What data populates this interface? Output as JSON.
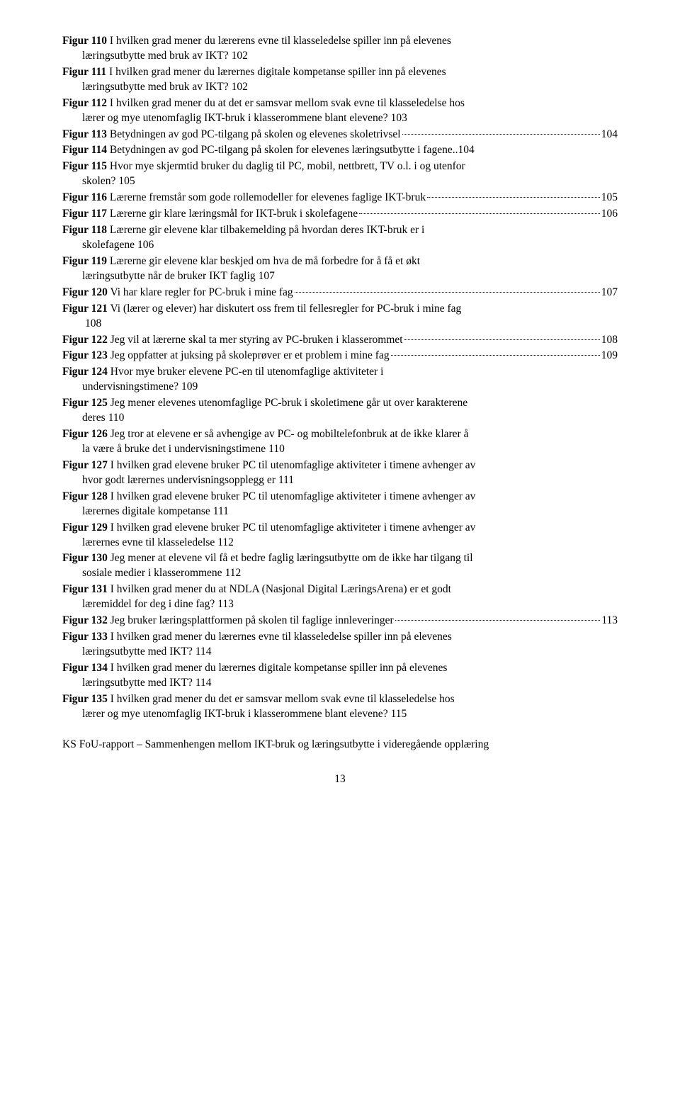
{
  "entries": [
    {
      "label": "Figur 110",
      "title": "I hvilken grad mener du lærerens evne til klasseledelse spiller inn på elevenes",
      "cont": "læringsutbytte med bruk av IKT?",
      "page": "102"
    },
    {
      "label": "Figur 111",
      "title": "I hvilken grad mener du lærernes digitale kompetanse spiller inn på elevenes",
      "cont": "læringsutbytte med bruk av IKT?",
      "page": "102"
    },
    {
      "label": "Figur 112",
      "title": "I hvilken grad mener du at det er samsvar mellom svak evne til klasseledelse hos",
      "cont": "lærer og mye utenomfaglig IKT-bruk i klasserommene blant elevene?",
      "page": "103"
    },
    {
      "label": "Figur 113",
      "title": "Betydningen av god PC-tilgang på skolen og elevenes skoletrivsel",
      "page": "104"
    },
    {
      "label": "Figur 114",
      "title": "Betydningen av god PC-tilgang på skolen for elevenes læringsutbytte i fagene",
      "page": "104",
      "tight": true
    },
    {
      "label": "Figur 115",
      "title": "Hvor mye skjermtid bruker du daglig til PC, mobil, nettbrett, TV o.l. i og utenfor",
      "cont": "skolen?",
      "page": "105"
    },
    {
      "label": "Figur 116",
      "title": "Lærerne fremstår som gode rollemodeller for elevenes faglige IKT-bruk",
      "page": "105"
    },
    {
      "label": "Figur 117",
      "title": "Lærerne gir klare læringsmål for IKT-bruk i skolefagene",
      "page": "106"
    },
    {
      "label": "Figur 118",
      "title": "Lærerne gir elevene klar tilbakemelding på hvordan deres IKT-bruk er i",
      "cont": "skolefagene",
      "page": "106"
    },
    {
      "label": "Figur 119",
      "title": "Lærerne gir elevene klar beskjed om hva de må forbedre for å få et økt",
      "cont": "læringsutbytte når de bruker IKT faglig",
      "page": "107"
    },
    {
      "label": "Figur 120",
      "title": "Vi har klare regler for PC-bruk i mine fag",
      "page": "107"
    },
    {
      "label": "Figur 121",
      "title": "Vi (lærer og elever) har diskutert oss frem til fellesregler for PC-bruk i mine fag",
      "cont": "",
      "page": "108",
      "contEmpty": true
    },
    {
      "label": "Figur 122",
      "title": "Jeg vil at lærerne skal ta mer styring av PC-bruken i klasserommet",
      "page": "108"
    },
    {
      "label": "Figur 123",
      "title": "Jeg oppfatter at juksing på skoleprøver er et problem i mine fag",
      "page": "109"
    },
    {
      "label": "Figur 124",
      "title": "Hvor mye bruker elevene PC-en til utenomfaglige aktiviteter i",
      "cont": "undervisningstimene?",
      "page": "109"
    },
    {
      "label": "Figur 125",
      "title": "Jeg mener elevenes utenomfaglige PC-bruk i skoletimene går ut over karakterene",
      "cont": "deres",
      "page": "110"
    },
    {
      "label": "Figur 126",
      "title": "Jeg tror at elevene er så avhengige av PC- og mobiltelefonbruk at de ikke klarer å",
      "cont": "la være å bruke det i undervisningstimene",
      "page": "110"
    },
    {
      "label": "Figur 127",
      "title": "I hvilken grad elevene bruker PC til utenomfaglige aktiviteter i timene avhenger av",
      "cont": "hvor godt lærernes undervisningsopplegg er",
      "page": "111"
    },
    {
      "label": "Figur 128",
      "title": "I hvilken grad elevene bruker PC til utenomfaglige aktiviteter i timene avhenger av",
      "cont": "lærernes digitale kompetanse",
      "page": "111"
    },
    {
      "label": "Figur 129",
      "title": "I hvilken grad elevene bruker PC til utenomfaglige aktiviteter i timene avhenger av",
      "cont": "lærernes evne til klasseledelse",
      "page": "112"
    },
    {
      "label": "Figur 130",
      "title": "Jeg mener at elevene vil få et bedre faglig læringsutbytte om de ikke har tilgang til",
      "cont": "sosiale medier i klasserommene",
      "page": "112"
    },
    {
      "label": "Figur 131",
      "title": "I hvilken grad mener du at NDLA (Nasjonal Digital LæringsArena) er et godt",
      "cont": "læremiddel for deg i dine fag?",
      "page": "113"
    },
    {
      "label": "Figur 132",
      "title": "Jeg bruker læringsplattformen på skolen til faglige innleveringer",
      "page": "113"
    },
    {
      "label": "Figur 133",
      "title": "I hvilken grad mener du lærernes evne til klasseledelse spiller inn på elevenes",
      "cont": "læringsutbytte med IKT?",
      "page": "114"
    },
    {
      "label": "Figur 134",
      "title": "I hvilken grad mener du lærernes digitale kompetanse spiller inn på elevenes",
      "cont": "læringsutbytte med IKT?",
      "page": "114"
    },
    {
      "label": "Figur 135",
      "title": "I hvilken grad mener du det er samsvar mellom svak evne til klasseledelse hos",
      "cont": "lærer og mye utenomfaglig IKT-bruk i klasserommene blant elevene?",
      "page": "115"
    }
  ],
  "footer": "KS FoU-rapport – Sammenhengen mellom IKT-bruk og læringsutbytte i videregående opplæring",
  "pageNumber": "13"
}
